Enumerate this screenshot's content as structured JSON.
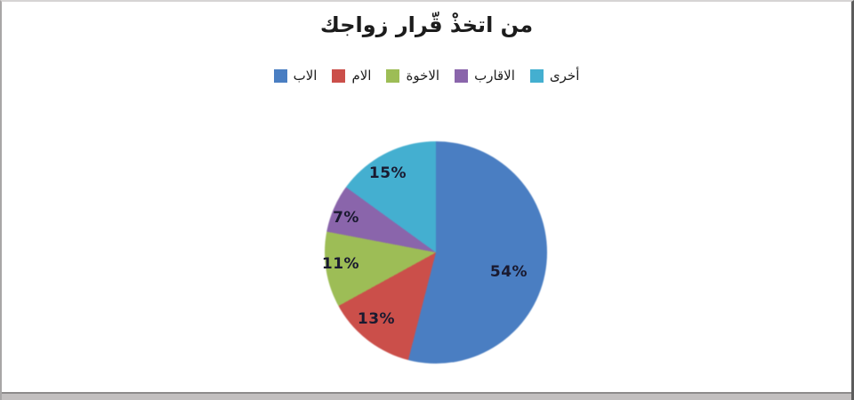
{
  "chart_data": {
    "type": "pie",
    "title": "من اتخذْ قّرار زواجك",
    "labels": [
      "الاب",
      "الام",
      "الاخوة",
      "الاقارب",
      "أخرى"
    ],
    "values": [
      54,
      13,
      11,
      7,
      15
    ],
    "unit": "%",
    "slice_labels": [
      "54%",
      "13%",
      "11%",
      "7%",
      "15%"
    ],
    "colors": [
      "#4a7ec2",
      "#cb4f4a",
      "#9dbd56",
      "#8a65ab",
      "#44afd0"
    ],
    "legend_position": "top",
    "start_angle_deg": 0,
    "direction": "clockwise",
    "background": "#ffffff"
  }
}
